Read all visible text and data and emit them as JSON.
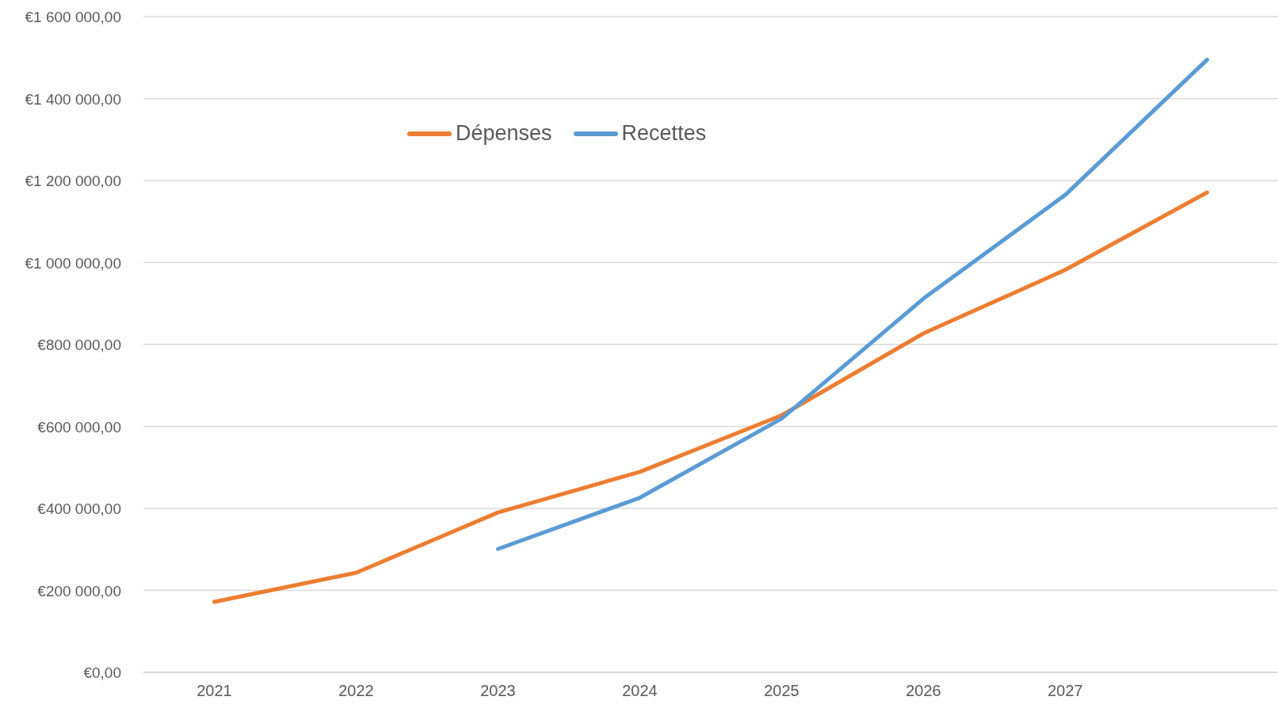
{
  "chart_data": {
    "type": "line",
    "categories": [
      "2021",
      "2022",
      "2023",
      "2024",
      "2025",
      "2026",
      "2027",
      null
    ],
    "series": [
      {
        "name": "Dépenses",
        "color": "#ed7d31",
        "values": [
          172000,
          243000,
          390000,
          489000,
          627000,
          827000,
          982000,
          1171000
        ]
      },
      {
        "name": "Recettes",
        "color": "#5b9bd5",
        "values": [
          null,
          null,
          301000,
          426000,
          619000,
          912000,
          1165000,
          1495000
        ]
      }
    ],
    "ylim": [
      0,
      1600000
    ],
    "yticks": [
      {
        "value": 0,
        "label": "€0,00"
      },
      {
        "value": 200000,
        "label": "€200 000,00"
      },
      {
        "value": 400000,
        "label": "€400 000,00"
      },
      {
        "value": 600000,
        "label": "€600 000,00"
      },
      {
        "value": 800000,
        "label": "€800 000,00"
      },
      {
        "value": 1000000,
        "label": "€1 000 000,00"
      },
      {
        "value": 1200000,
        "label": "€1 200 000,00"
      },
      {
        "value": 1400000,
        "label": "€1 400 000,00"
      },
      {
        "value": 1600000,
        "label": "€1 600 000,00"
      }
    ],
    "grid": "y",
    "legend": "top left"
  }
}
